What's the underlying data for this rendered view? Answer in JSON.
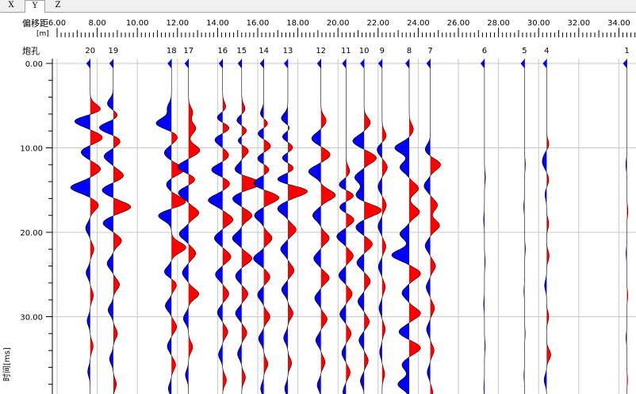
{
  "tabs": [
    {
      "label": "X",
      "active": false
    },
    {
      "label": "Y",
      "active": true
    },
    {
      "label": "Z",
      "active": false
    }
  ],
  "header": {
    "offset_label": "偏移距",
    "offset_unit": "[m]",
    "shot_label": "炮孔",
    "time_axis_label": "时间[ms]"
  },
  "colors": {
    "positive": "#ff0000",
    "negative": "#0000ff",
    "trace": "#000000",
    "grid": "#c8c8c8"
  },
  "chart_data": {
    "type": "wiggle-trace seismogram",
    "x_ticks": [
      "6.00",
      "8.00",
      "10.00",
      "12.00",
      "14.00",
      "16.00",
      "18.00",
      "20.00",
      "22.00",
      "24.00",
      "26.00",
      "28.00",
      "30.00",
      "32.00",
      "34.00"
    ],
    "y_ticks": [
      "0.00",
      "10.00",
      "20.00",
      "30.00"
    ],
    "xlim": [
      6.0,
      35.5
    ],
    "ylim": [
      0,
      39.5
    ],
    "grid": true,
    "traces": [
      {
        "label": "20",
        "offset": 7.65,
        "events": [
          [
            5.5,
            0.55
          ],
          [
            6.8,
            -0.8
          ],
          [
            8.8,
            0.6
          ],
          [
            10.5,
            -0.45
          ],
          [
            12.5,
            0.5
          ],
          [
            14.7,
            -0.95
          ],
          [
            16.8,
            0.4
          ],
          [
            19.5,
            -0.22
          ],
          [
            22,
            0.18
          ],
          [
            24.8,
            -0.2
          ],
          [
            27.5,
            0.15
          ],
          [
            30.5,
            -0.15
          ],
          [
            33.5,
            0.14
          ],
          [
            36.5,
            -0.12
          ]
        ]
      },
      {
        "label": "19",
        "offset": 8.8,
        "events": [
          [
            4.8,
            -0.3
          ],
          [
            6.2,
            0.25
          ],
          [
            7.6,
            -0.7
          ],
          [
            9.2,
            0.35
          ],
          [
            11,
            -0.45
          ],
          [
            13.3,
            0.5
          ],
          [
            15,
            -0.55
          ],
          [
            17,
            0.85
          ],
          [
            18.9,
            -0.5
          ],
          [
            21,
            0.4
          ],
          [
            23.7,
            -0.3
          ],
          [
            26.2,
            0.3
          ],
          [
            29.2,
            -0.25
          ],
          [
            32,
            0.2
          ],
          [
            35,
            -0.18
          ],
          [
            38,
            0.15
          ]
        ]
      },
      {
        "label": "18",
        "offset": 11.7,
        "events": [
          [
            5.3,
            -0.2
          ],
          [
            7.1,
            -0.75
          ],
          [
            8.7,
            0.3
          ],
          [
            10.6,
            -0.35
          ],
          [
            12.6,
            0.6
          ],
          [
            14.3,
            -0.25
          ],
          [
            16.4,
            0.7
          ],
          [
            18,
            -0.65
          ],
          [
            21.8,
            0.7
          ],
          [
            24.7,
            -0.35
          ],
          [
            26.2,
            0.25
          ],
          [
            28.7,
            -0.3
          ],
          [
            31.2,
            0.25
          ],
          [
            33.5,
            -0.2
          ],
          [
            35.7,
            0.2
          ],
          [
            38.5,
            -0.15
          ]
        ]
      },
      {
        "label": "17",
        "offset": 12.55,
        "events": [
          [
            5.8,
            0.2
          ],
          [
            7.7,
            0.35
          ],
          [
            10.3,
            0.55
          ],
          [
            12.3,
            -0.55
          ],
          [
            13.7,
            0.35
          ],
          [
            15.3,
            -0.5
          ],
          [
            17.7,
            0.5
          ],
          [
            20.2,
            -0.45
          ],
          [
            22.5,
            0.35
          ],
          [
            24.8,
            -0.3
          ],
          [
            27.3,
            0.5
          ],
          [
            30.2,
            -0.25
          ],
          [
            33.6,
            0.2
          ],
          [
            36.9,
            -0.15
          ]
        ]
      },
      {
        "label": "16",
        "offset": 14.25,
        "events": [
          [
            5.3,
            0.18
          ],
          [
            6.5,
            -0.35
          ],
          [
            7.6,
            0.4
          ],
          [
            9,
            -0.4
          ],
          [
            10.9,
            0.3
          ],
          [
            12.6,
            -0.55
          ],
          [
            14.2,
            0.35
          ],
          [
            16.2,
            -0.7
          ],
          [
            18.5,
            0.5
          ],
          [
            20.7,
            -0.4
          ],
          [
            22.9,
            0.4
          ],
          [
            25,
            -0.35
          ],
          [
            27.3,
            0.3
          ],
          [
            29.5,
            -0.25
          ],
          [
            31.8,
            0.25
          ],
          [
            34.5,
            -0.2
          ],
          [
            37.5,
            0.18
          ]
        ]
      },
      {
        "label": "15",
        "offset": 15.2,
        "events": [
          [
            5.5,
            0.18
          ],
          [
            6.8,
            -0.3
          ],
          [
            7.9,
            0.3
          ],
          [
            9.3,
            -0.3
          ],
          [
            10.2,
            0.4
          ],
          [
            12.6,
            -0.35
          ],
          [
            14.2,
            0.95
          ],
          [
            16,
            -0.45
          ],
          [
            18,
            0.5
          ],
          [
            20.7,
            -0.45
          ],
          [
            23.1,
            0.5
          ],
          [
            25.2,
            -0.3
          ],
          [
            27.3,
            0.3
          ],
          [
            29.6,
            -0.3
          ],
          [
            31.9,
            0.25
          ],
          [
            34.4,
            -0.2
          ],
          [
            37.2,
            0.18
          ]
        ]
      },
      {
        "label": "14",
        "offset": 16.3,
        "events": [
          [
            6.1,
            -0.2
          ],
          [
            7.2,
            0.3
          ],
          [
            8.2,
            -0.35
          ],
          [
            9.8,
            0.35
          ],
          [
            11.3,
            -0.35
          ],
          [
            12.5,
            0.3
          ],
          [
            14.2,
            -0.5
          ],
          [
            15.9,
            0.75
          ],
          [
            18,
            -0.45
          ],
          [
            20.7,
            0.4
          ],
          [
            23.1,
            -0.5
          ],
          [
            25.3,
            0.3
          ],
          [
            27.4,
            -0.3
          ],
          [
            30,
            0.3
          ],
          [
            32.6,
            -0.25
          ],
          [
            35.6,
            0.2
          ],
          [
            38.5,
            -0.15
          ]
        ]
      },
      {
        "label": "13",
        "offset": 17.5,
        "events": [
          [
            6.6,
            -0.35
          ],
          [
            7.7,
            0.25
          ],
          [
            8.6,
            -0.35
          ],
          [
            10,
            0.3
          ],
          [
            11.2,
            -0.35
          ],
          [
            12.4,
            0.35
          ],
          [
            13.8,
            -0.6
          ],
          [
            15.1,
            1.0
          ],
          [
            17.2,
            -0.5
          ],
          [
            19.7,
            0.4
          ],
          [
            22,
            -0.35
          ],
          [
            24.5,
            0.3
          ],
          [
            26.8,
            -0.3
          ],
          [
            29.6,
            0.25
          ],
          [
            32.5,
            -0.2
          ],
          [
            35.5,
            0.18
          ],
          [
            38.5,
            -0.15
          ]
        ]
      },
      {
        "label": "12",
        "offset": 19.15,
        "events": [
          [
            6.8,
            0.25
          ],
          [
            8.9,
            -0.45
          ],
          [
            10.8,
            0.45
          ],
          [
            12.8,
            -0.6
          ],
          [
            15.6,
            0.7
          ],
          [
            18,
            -0.4
          ],
          [
            20.7,
            0.4
          ],
          [
            23.1,
            -0.35
          ],
          [
            25.4,
            0.4
          ],
          [
            27.8,
            -0.3
          ],
          [
            30.3,
            0.3
          ],
          [
            32.8,
            -0.25
          ],
          [
            35.4,
            0.2
          ],
          [
            38.1,
            -0.18
          ]
        ]
      },
      {
        "label": "11",
        "offset": 20.4,
        "events": [
          [
            12.8,
            0.18
          ],
          [
            14.5,
            -0.4
          ],
          [
            15.6,
            0.45
          ],
          [
            17,
            -0.35
          ],
          [
            18.5,
            0.4
          ],
          [
            20.5,
            -0.45
          ],
          [
            22.8,
            0.35
          ],
          [
            25.1,
            -0.35
          ],
          [
            27.3,
            0.3
          ],
          [
            29.7,
            -0.3
          ],
          [
            32,
            0.25
          ],
          [
            34.3,
            -0.2
          ],
          [
            36.6,
            0.2
          ],
          [
            38.9,
            -0.15
          ]
        ]
      },
      {
        "label": "10",
        "offset": 21.3,
        "events": [
          [
            7,
            0.3
          ],
          [
            9.2,
            -0.55
          ],
          [
            11.2,
            0.6
          ],
          [
            13.5,
            -0.45
          ],
          [
            15.6,
            -0.4
          ],
          [
            17.4,
            0.85
          ],
          [
            19.4,
            -0.4
          ],
          [
            21.4,
            0.4
          ],
          [
            23.6,
            -0.35
          ],
          [
            25.8,
            0.3
          ],
          [
            28.2,
            -0.3
          ],
          [
            30.6,
            0.25
          ],
          [
            32.8,
            -0.25
          ],
          [
            35.2,
            0.2
          ],
          [
            37.6,
            -0.18
          ]
        ]
      },
      {
        "label": "9",
        "offset": 22.2,
        "events": [
          [
            8.6,
            0.2
          ],
          [
            10.2,
            -0.25
          ],
          [
            12.3,
            0.25
          ],
          [
            14.6,
            -0.2
          ],
          [
            16.8,
            0.2
          ],
          [
            19.3,
            -0.2
          ],
          [
            21.7,
            0.18
          ],
          [
            24.1,
            -0.18
          ],
          [
            26.5,
            0.15
          ],
          [
            29,
            -0.15
          ],
          [
            31.5,
            0.15
          ],
          [
            34.2,
            -0.12
          ],
          [
            36.8,
            0.12
          ]
        ]
      },
      {
        "label": "8",
        "offset": 23.55,
        "events": [
          [
            7.8,
            0.2
          ],
          [
            10,
            -0.7
          ],
          [
            12.3,
            -0.45
          ],
          [
            14.8,
            0.45
          ],
          [
            17.6,
            0.5
          ],
          [
            20.2,
            -0.45
          ],
          [
            22.7,
            -0.85
          ],
          [
            24.9,
            0.55
          ],
          [
            27.2,
            -0.35
          ],
          [
            29.6,
            0.55
          ],
          [
            31.8,
            -0.5
          ],
          [
            33.7,
            0.55
          ],
          [
            35.7,
            -0.35
          ],
          [
            38,
            -0.55
          ]
        ]
      },
      {
        "label": "7",
        "offset": 24.6,
        "events": [
          [
            10.2,
            -0.25
          ],
          [
            12,
            0.5
          ],
          [
            14.5,
            -0.3
          ],
          [
            16.8,
            0.35
          ],
          [
            19.2,
            0.45
          ],
          [
            21.6,
            -0.25
          ],
          [
            24,
            0.25
          ],
          [
            26.5,
            -0.2
          ],
          [
            29,
            0.2
          ],
          [
            31.5,
            -0.18
          ],
          [
            34,
            0.18
          ],
          [
            36.6,
            -0.15
          ],
          [
            39,
            0.12
          ]
        ]
      },
      {
        "label": "6",
        "offset": 27.3,
        "events": [
          [
            13.5,
            0.05
          ],
          [
            18.5,
            -0.04
          ],
          [
            23.5,
            0.04
          ],
          [
            28.5,
            -0.04
          ],
          [
            33.5,
            0.04
          ],
          [
            38.5,
            -0.03
          ]
        ]
      },
      {
        "label": "5",
        "offset": 29.3,
        "events": [
          [
            12,
            0.04
          ],
          [
            17,
            -0.04
          ],
          [
            22,
            0.04
          ],
          [
            27,
            -0.03
          ],
          [
            32,
            0.03
          ],
          [
            37,
            -0.03
          ]
        ]
      },
      {
        "label": "4",
        "offset": 30.4,
        "events": [
          [
            9.7,
            0.12
          ],
          [
            10.8,
            -0.1
          ],
          [
            11.8,
            -0.18
          ],
          [
            13.8,
            0.1
          ],
          [
            15.5,
            -0.08
          ],
          [
            19,
            0.1
          ],
          [
            22.8,
            0.12
          ],
          [
            26.3,
            -0.1
          ],
          [
            30,
            0.1
          ],
          [
            34.5,
            0.2
          ],
          [
            37.5,
            -0.12
          ]
        ]
      },
      {
        "label": "1",
        "offset": 34.4,
        "events": [
          [
            12,
            -0.05
          ],
          [
            17.5,
            0.05
          ],
          [
            22.5,
            -0.04
          ],
          [
            27.5,
            0.04
          ],
          [
            32.5,
            -0.04
          ],
          [
            37.5,
            0.03
          ]
        ]
      }
    ]
  }
}
